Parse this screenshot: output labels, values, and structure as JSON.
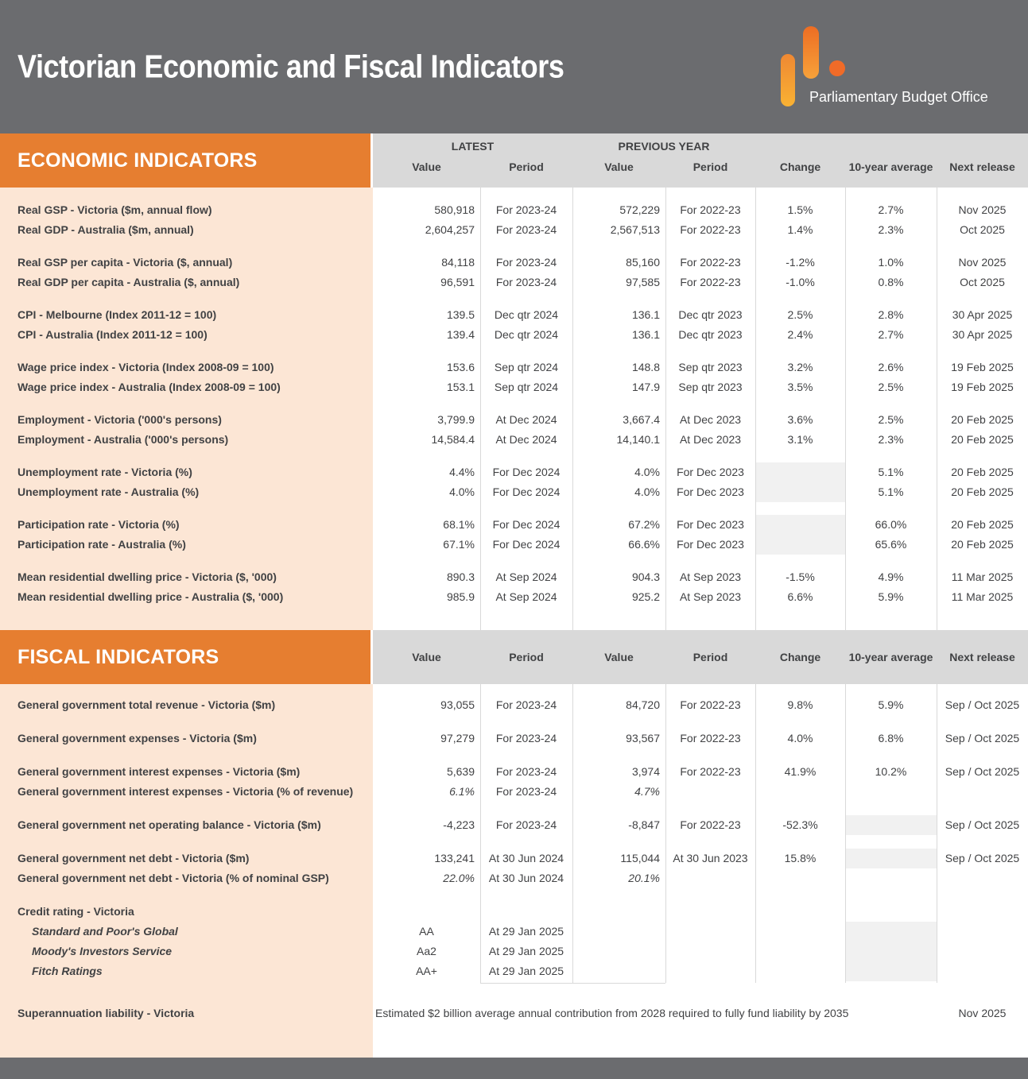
{
  "colors": {
    "accent_orange": "#e67e30",
    "top_bar_gray": "#6b6c6f",
    "column_band_gray": "#d9d9d9",
    "label_column_peach": "#fce6d5",
    "blank_cell_shade": "#f1f1f1",
    "text": "#414244"
  },
  "header": {
    "title": "Victorian Economic and Fiscal Indicators",
    "logo_text": "Parliamentary Budget Office"
  },
  "columns": {
    "latest_group": "LATEST",
    "previous_group": "PREVIOUS YEAR",
    "value": "Value",
    "period": "Period",
    "change": "Change",
    "avg": "10-year average",
    "next": "Next release"
  },
  "sections": {
    "economic": {
      "title": "ECONOMIC INDICATORS",
      "rows": [
        {
          "label": "Real GSP - Victoria ($m, annual flow)",
          "lv": "580,918",
          "lp": "For 2023-24",
          "pv": "572,229",
          "pp": "For 2022-23",
          "ch": "1.5%",
          "avg": "2.7%",
          "nr": "Nov 2025",
          "flags": []
        },
        {
          "label": "Real GDP - Australia ($m, annual)",
          "lv": "2,604,257",
          "lp": "For 2023-24",
          "pv": "2,567,513",
          "pp": "For 2022-23",
          "ch": "1.4%",
          "avg": "2.3%",
          "nr": "Oct 2025",
          "flags": []
        },
        {
          "label": "Real GSP per capita - Victoria ($, annual)",
          "lv": "84,118",
          "lp": "For 2023-24",
          "pv": "85,160",
          "pp": "For 2022-23",
          "ch": "-1.2%",
          "avg": "1.0%",
          "nr": "Nov 2025",
          "flags": [
            "gap"
          ]
        },
        {
          "label": "Real GDP per capita - Australia ($, annual)",
          "lv": "96,591",
          "lp": "For 2023-24",
          "pv": "97,585",
          "pp": "For 2022-23",
          "ch": "-1.0%",
          "avg": "0.8%",
          "nr": "Oct 2025",
          "flags": []
        },
        {
          "label": "CPI - Melbourne (Index 2011-12 = 100)",
          "lv": "139.5",
          "lp": "Dec qtr 2024",
          "pv": "136.1",
          "pp": "Dec qtr 2023",
          "ch": "2.5%",
          "avg": "2.8%",
          "nr": "30 Apr 2025",
          "flags": [
            "gap"
          ]
        },
        {
          "label": "CPI - Australia (Index 2011-12 = 100)",
          "lv": "139.4",
          "lp": "Dec qtr 2024",
          "pv": "136.1",
          "pp": "Dec qtr 2023",
          "ch": "2.4%",
          "avg": "2.7%",
          "nr": "30 Apr 2025",
          "flags": []
        },
        {
          "label": "Wage price index - Victoria (Index 2008-09 = 100)",
          "lv": "153.6",
          "lp": "Sep qtr 2024",
          "pv": "148.8",
          "pp": "Sep qtr 2023",
          "ch": "3.2%",
          "avg": "2.6%",
          "nr": "19 Feb 2025",
          "flags": [
            "gap"
          ]
        },
        {
          "label": "Wage price index - Australia (Index 2008-09 = 100)",
          "lv": "153.1",
          "lp": "Sep qtr 2024",
          "pv": "147.9",
          "pp": "Sep qtr 2023",
          "ch": "3.5%",
          "avg": "2.5%",
          "nr": "19 Feb 2025",
          "flags": []
        },
        {
          "label": "Employment - Victoria ('000's persons)",
          "lv": "3,799.9",
          "lp": "At Dec 2024",
          "pv": "3,667.4",
          "pp": "At Dec 2023",
          "ch": "3.6%",
          "avg": "2.5%",
          "nr": "20 Feb 2025",
          "flags": [
            "gap"
          ]
        },
        {
          "label": "Employment - Australia ('000's persons)",
          "lv": "14,584.4",
          "lp": "At Dec 2024",
          "pv": "14,140.1",
          "pp": "At Dec 2023",
          "ch": "3.1%",
          "avg": "2.3%",
          "nr": "20 Feb 2025",
          "flags": []
        },
        {
          "label": "Unemployment rate - Victoria (%)",
          "lv": "4.4%",
          "lp": "For Dec 2024",
          "pv": "4.0%",
          "pp": "For Dec 2023",
          "ch": "",
          "avg": "5.1%",
          "nr": "20 Feb 2025",
          "flags": [
            "gap",
            "shade-ch"
          ]
        },
        {
          "label": "Unemployment rate - Australia (%)",
          "lv": "4.0%",
          "lp": "For Dec 2024",
          "pv": "4.0%",
          "pp": "For Dec 2023",
          "ch": "",
          "avg": "5.1%",
          "nr": "20 Feb 2025",
          "flags": [
            "shade-ch"
          ]
        },
        {
          "label": "Participation rate - Victoria (%)",
          "lv": "68.1%",
          "lp": "For Dec 2024",
          "pv": "67.2%",
          "pp": "For Dec 2023",
          "ch": "",
          "avg": "66.0%",
          "nr": "20 Feb 2025",
          "flags": [
            "gap",
            "shade-ch"
          ]
        },
        {
          "label": "Participation rate - Australia (%)",
          "lv": "67.1%",
          "lp": "For Dec 2024",
          "pv": "66.6%",
          "pp": "For Dec 2023",
          "ch": "",
          "avg": "65.6%",
          "nr": "20 Feb 2025",
          "flags": [
            "shade-ch"
          ]
        },
        {
          "label": "Mean residential dwelling price - Victoria ($, '000)",
          "lv": "890.3",
          "lp": "At Sep 2024",
          "pv": "904.3",
          "pp": "At Sep 2023",
          "ch": "-1.5%",
          "avg": "4.9%",
          "nr": "11 Mar 2025",
          "flags": [
            "gap"
          ]
        },
        {
          "label": "Mean residential dwelling price - Australia ($, '000)",
          "lv": "985.9",
          "lp": "At Sep 2024",
          "pv": "925.2",
          "pp": "At Sep 2023",
          "ch": "6.6%",
          "avg": "5.9%",
          "nr": "11 Mar 2025",
          "flags": []
        }
      ]
    },
    "fiscal": {
      "title": "FISCAL INDICATORS",
      "rows": [
        {
          "label": "General government total revenue - Victoria ($m)",
          "lv": "93,055",
          "lp": "For 2023-24",
          "pv": "84,720",
          "pp": "For 2022-23",
          "ch": "9.8%",
          "avg": "5.9%",
          "nr": "Sep / Oct 2025",
          "flags": []
        },
        {
          "label": "General government expenses - Victoria ($m)",
          "lv": "97,279",
          "lp": "For 2023-24",
          "pv": "93,567",
          "pp": "For 2022-23",
          "ch": "4.0%",
          "avg": "6.8%",
          "nr": "Sep / Oct 2025",
          "flags": [
            "gap"
          ]
        },
        {
          "label": "General government interest expenses - Victoria ($m)",
          "lv": "5,639",
          "lp": "For 2023-24",
          "pv": "3,974",
          "pp": "For 2022-23",
          "ch": "41.9%",
          "avg": "10.2%",
          "nr": "Sep / Oct 2025",
          "flags": [
            "gap"
          ]
        },
        {
          "label": "General government interest expenses - Victoria (% of revenue)",
          "lv": "6.1%",
          "lp": "For 2023-24",
          "pv": "4.7%",
          "pp": "",
          "ch": "",
          "avg": "",
          "nr": "",
          "flags": [
            "ital-vals"
          ]
        },
        {
          "label": "General government net operating balance - Victoria ($m)",
          "lv": "-4,223",
          "lp": "For 2023-24",
          "pv": "-8,847",
          "pp": "For 2022-23",
          "ch": "-52.3%",
          "avg": "",
          "nr": "Sep / Oct 2025",
          "flags": [
            "gap",
            "shade-avg"
          ]
        },
        {
          "label": "General government net debt - Victoria ($m)",
          "lv": "133,241",
          "lp": "At 30 Jun 2024",
          "pv": "115,044",
          "pp": "At 30 Jun 2023",
          "ch": "15.8%",
          "avg": "",
          "nr": "Sep / Oct 2025",
          "flags": [
            "gap",
            "shade-avg"
          ]
        },
        {
          "label": "General government net debt - Victoria (% of nominal GSP)",
          "lv": "22.0%",
          "lp": "At 30 Jun 2024",
          "pv": "20.1%",
          "pp": "",
          "ch": "",
          "avg": "",
          "nr": "",
          "flags": [
            "ital-vals"
          ]
        },
        {
          "label": "Credit rating - Victoria",
          "lv": "",
          "lp": "",
          "pv": "",
          "pp": "",
          "ch": "",
          "avg": "",
          "nr": "",
          "flags": [
            "gap"
          ]
        },
        {
          "label": "Standard and Poor's Global",
          "lv": "AA",
          "lp": "At 29 Jan 2025",
          "pv": "",
          "pp": "",
          "ch": "",
          "avg": "",
          "nr": "",
          "flags": [
            "indent",
            "ital-label",
            "center-vals",
            "shade-avg"
          ]
        },
        {
          "label": "Moody's Investors Service",
          "lv": "Aa2",
          "lp": "At 29 Jan 2025",
          "pv": "",
          "pp": "",
          "ch": "",
          "avg": "",
          "nr": "",
          "flags": [
            "indent",
            "ital-label",
            "center-vals",
            "shade-avg"
          ]
        },
        {
          "label": "Fitch Ratings",
          "lv": "AA+",
          "lp": "At 29 Jan 2025",
          "pv": "",
          "pp": "",
          "ch": "",
          "avg": "",
          "nr": "",
          "flags": [
            "indent",
            "ital-label",
            "center-vals",
            "shade-avg"
          ]
        }
      ],
      "superannuation": {
        "label": "Superannuation liability - Victoria",
        "note": "Estimated $2 billion average annual contribution from 2028 required to fully fund liability by 2035",
        "next_release": "Nov 2025"
      }
    }
  }
}
